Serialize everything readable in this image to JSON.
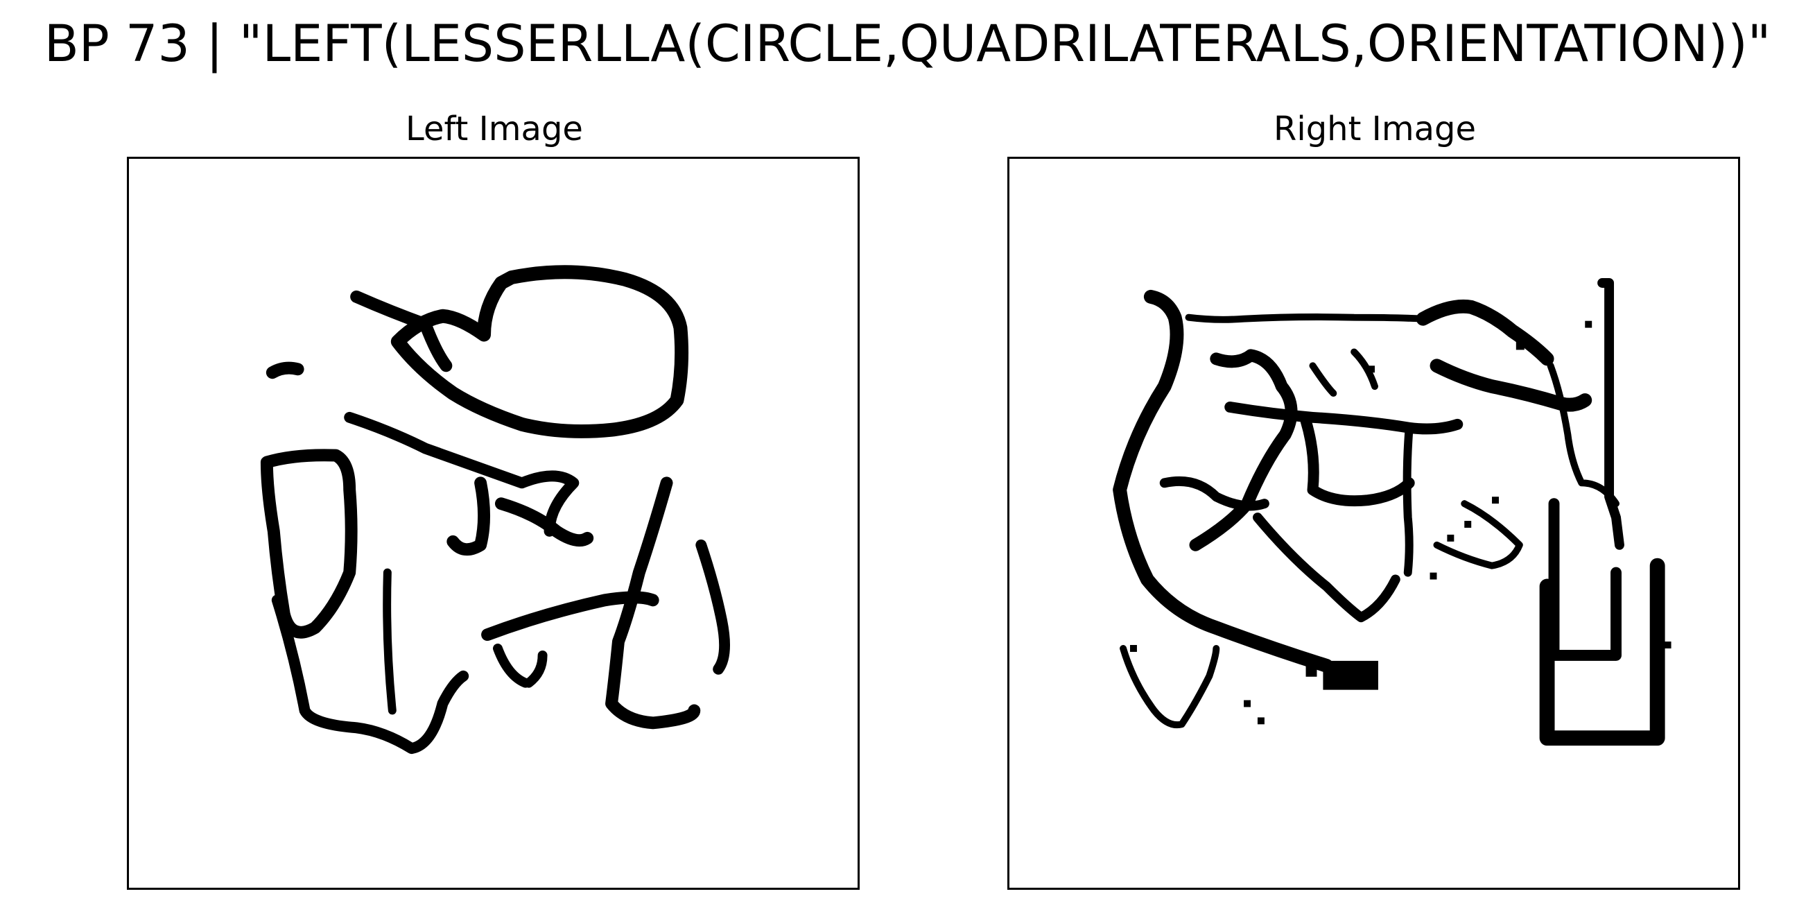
{
  "figure": {
    "title": "BP 73 | \"LEFT(LESSERLLA(CIRCLE,QUADRILATERALS,ORIENTATION))\""
  },
  "panels": [
    {
      "title": "Left Image",
      "ink_color": "#000000"
    },
    {
      "title": "Right Image",
      "ink_color": "#000000"
    }
  ]
}
